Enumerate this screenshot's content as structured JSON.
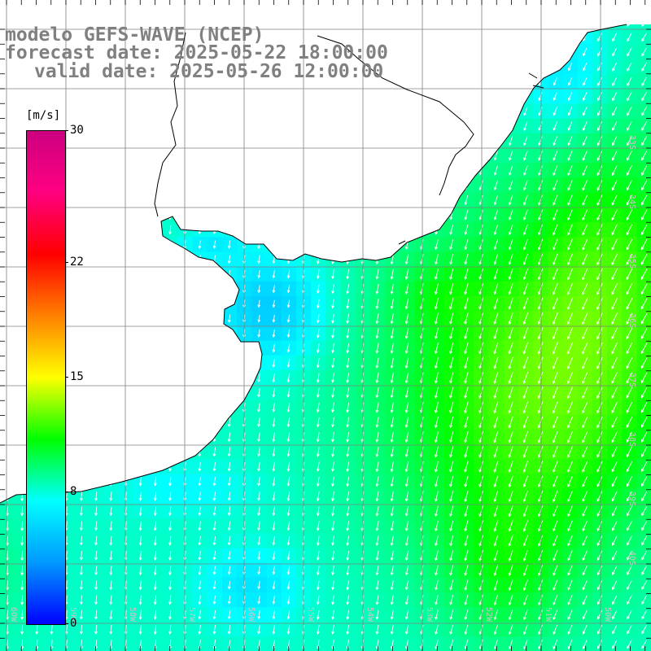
{
  "titles": {
    "line1": "modelo GEFS-WAVE (NCEP)",
    "line2": "forecast date: 2025-05-22 18:00:00",
    "line3": "valid date: 2025-05-26 12:00:00"
  },
  "colorbar": {
    "unit": "[m/s]",
    "ticks": [
      {
        "value": 30,
        "label": "30"
      },
      {
        "value": 22,
        "label": "22"
      },
      {
        "value": 15,
        "label": "15"
      },
      {
        "value": 8,
        "label": "8"
      },
      {
        "value": 0,
        "label": "0"
      }
    ],
    "min": 0,
    "max": 30,
    "colors": [
      "#0000ff",
      "#0099ff",
      "#00ffff",
      "#00ff00",
      "#ffff00",
      "#ff8000",
      "#ff0000",
      "#ff0080",
      "#cc0080"
    ]
  },
  "map": {
    "field": "wind speed",
    "wind_direction": "from north-northeast",
    "longitude_labels": [
      "60W",
      "59W",
      "58W",
      "57W",
      "56W",
      "55W",
      "54W",
      "53W",
      "52W",
      "51W",
      "50W"
    ],
    "latitude_labels": [
      "33S",
      "34S",
      "35S",
      "36S",
      "37S",
      "38S",
      "39S",
      "40S"
    ],
    "colors": {
      "land": "#ffffff",
      "coast": "#000000",
      "grid": "#808080",
      "arrows": "#ffffff"
    }
  }
}
